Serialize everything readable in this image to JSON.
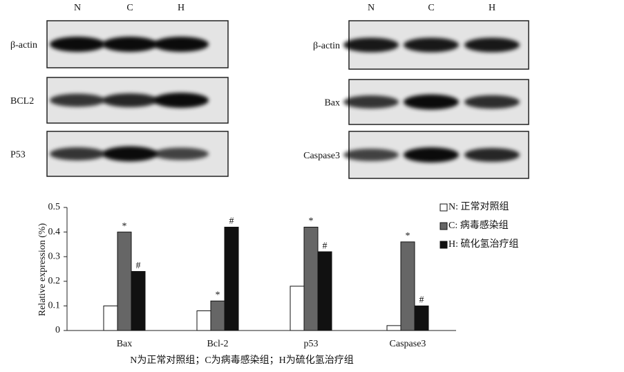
{
  "blots": [
    {
      "lanes": [
        "N",
        "C",
        "H"
      ],
      "rows": [
        "β-actin",
        "BCL2",
        "P53"
      ]
    },
    {
      "lanes": [
        "N",
        "C",
        "H"
      ],
      "rows": [
        "β-actin",
        "Bax",
        "Caspase3"
      ]
    }
  ],
  "chart_data": {
    "type": "bar",
    "y_label": "Relative expression (%)",
    "categories": [
      "Bax",
      "Bcl-2",
      "p53",
      "Caspase3"
    ],
    "series": [
      {
        "name": "N: 正常对照组",
        "color": "#ffffff",
        "values": [
          0.1,
          0.08,
          0.18,
          0.02
        ]
      },
      {
        "name": "C: 病毒感染组",
        "color": "#666666",
        "values": [
          0.4,
          0.12,
          0.42,
          0.36
        ],
        "annotations": [
          "*",
          "*",
          "*",
          "*"
        ]
      },
      {
        "name": "H: 硫化氢治疗组",
        "color": "#111111",
        "values": [
          0.24,
          0.42,
          0.32,
          0.1
        ],
        "annotations": [
          "#",
          "#",
          "#",
          "#"
        ]
      }
    ],
    "ylim": [
      0,
      0.5
    ],
    "yticks": [
      0,
      0.1,
      0.2,
      0.3,
      0.4,
      0.5
    ],
    "caption": "N为正常对照组；C为病毒感染组；H为硫化氢治疗组"
  }
}
